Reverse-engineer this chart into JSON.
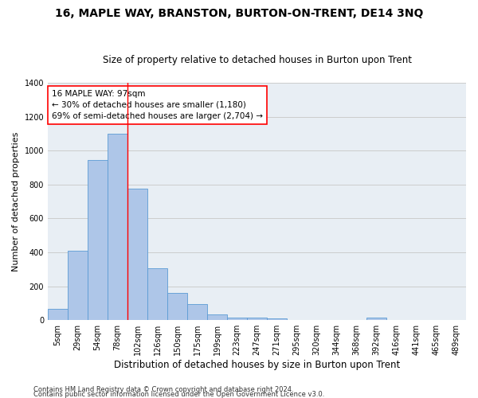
{
  "title": "16, MAPLE WAY, BRANSTON, BURTON-ON-TRENT, DE14 3NQ",
  "subtitle": "Size of property relative to detached houses in Burton upon Trent",
  "xlabel": "Distribution of detached houses by size in Burton upon Trent",
  "ylabel": "Number of detached properties",
  "footnote1": "Contains HM Land Registry data © Crown copyright and database right 2024.",
  "footnote2": "Contains public sector information licensed under the Open Government Licence v3.0.",
  "bar_labels": [
    "5sqm",
    "29sqm",
    "54sqm",
    "78sqm",
    "102sqm",
    "126sqm",
    "150sqm",
    "175sqm",
    "199sqm",
    "223sqm",
    "247sqm",
    "271sqm",
    "295sqm",
    "320sqm",
    "344sqm",
    "368sqm",
    "392sqm",
    "416sqm",
    "441sqm",
    "465sqm",
    "489sqm"
  ],
  "bar_values": [
    65,
    410,
    945,
    1100,
    775,
    305,
    160,
    97,
    35,
    17,
    17,
    12,
    0,
    0,
    0,
    0,
    15,
    0,
    0,
    0,
    0
  ],
  "bar_color": "#aec6e8",
  "bar_edge_color": "#5b9bd5",
  "grid_color": "#cccccc",
  "background_color": "#e8eef4",
  "red_line_x": 3.5,
  "annotation_box_text": "16 MAPLE WAY: 97sqm\n← 30% of detached houses are smaller (1,180)\n69% of semi-detached houses are larger (2,704) →",
  "ylim": [
    0,
    1400
  ],
  "yticks": [
    0,
    200,
    400,
    600,
    800,
    1000,
    1200,
    1400
  ],
  "title_fontsize": 10,
  "subtitle_fontsize": 8.5,
  "xlabel_fontsize": 8.5,
  "ylabel_fontsize": 8,
  "tick_fontsize": 7,
  "annot_fontsize": 7.5,
  "footnote_fontsize": 6
}
